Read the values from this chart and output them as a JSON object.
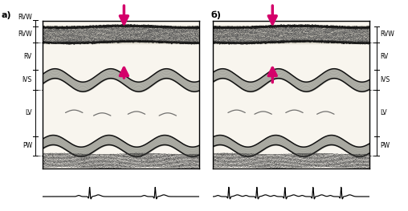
{
  "panel_a_label": "а)",
  "panel_b_label": "б)",
  "left_labels": [
    "RVW",
    "RV",
    "IVS",
    "LV",
    "PW"
  ],
  "right_labels": [
    "RVW",
    "RV",
    "IVS",
    "LV",
    "PW"
  ],
  "bg_color": "#ffffff",
  "panel_bg": "#ffffff",
  "arrow_color": "#d4006a",
  "label_fontsize": 5.5,
  "panel_label_fontsize": 8,
  "rvw_band_color": "#aaaaaa",
  "ivs_band_color": "#aaaaaa",
  "pw_band_color": "#aaaaaa",
  "line_color": "#111111",
  "chord_color": "#555555"
}
